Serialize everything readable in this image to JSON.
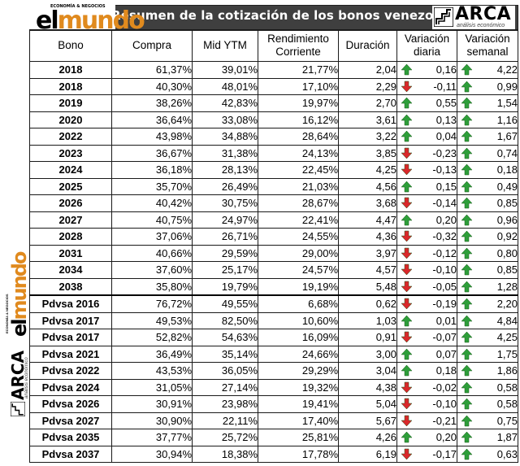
{
  "header": {
    "title": "Resumen de la cotización de los bonos venezolanos",
    "elmundo_tag": "ECONOMÍA & NEGOCIOS",
    "elmundo_el": "el",
    "elmundo_mundo": "mundo",
    "arca_name": "ARCA",
    "arca_sub": "análisis económico"
  },
  "colors": {
    "up": "#2e9e3a",
    "down": "#d9282b",
    "mundo": "#e08a1e",
    "banner": "#3f3f3f"
  },
  "columns": [
    "Bono",
    "Compra",
    "Mid YTM",
    "Rendimiento Corriente",
    "Duración",
    "Variación diaria",
    "Variación semanal"
  ],
  "rows": [
    {
      "bono": "2018",
      "compra": "61,37%",
      "ytm": "39,01%",
      "rend": "21,77%",
      "dur": "2,04",
      "vd": "0,16",
      "vd_dir": "up",
      "vs": "4,22",
      "vs_dir": "up"
    },
    {
      "bono": "2018",
      "compra": "40,30%",
      "ytm": "48,01%",
      "rend": "17,10%",
      "dur": "2,29",
      "vd": "-0,11",
      "vd_dir": "down",
      "vs": "0,99",
      "vs_dir": "up"
    },
    {
      "bono": "2019",
      "compra": "38,26%",
      "ytm": "42,83%",
      "rend": "19,97%",
      "dur": "2,70",
      "vd": "0,55",
      "vd_dir": "up",
      "vs": "1,54",
      "vs_dir": "up"
    },
    {
      "bono": "2020",
      "compra": "36,64%",
      "ytm": "33,08%",
      "rend": "16,12%",
      "dur": "3,61",
      "vd": "0,13",
      "vd_dir": "up",
      "vs": "1,16",
      "vs_dir": "up"
    },
    {
      "bono": "2022",
      "compra": "43,98%",
      "ytm": "34,88%",
      "rend": "28,64%",
      "dur": "3,22",
      "vd": "0,04",
      "vd_dir": "up",
      "vs": "1,67",
      "vs_dir": "up"
    },
    {
      "bono": "2023",
      "compra": "36,67%",
      "ytm": "31,38%",
      "rend": "24,13%",
      "dur": "3,85",
      "vd": "-0,23",
      "vd_dir": "down",
      "vs": "0,74",
      "vs_dir": "up"
    },
    {
      "bono": "2024",
      "compra": "36,18%",
      "ytm": "28,13%",
      "rend": "22,45%",
      "dur": "4,25",
      "vd": "-0,13",
      "vd_dir": "down",
      "vs": "0,18",
      "vs_dir": "up"
    },
    {
      "bono": "2025",
      "compra": "35,70%",
      "ytm": "26,49%",
      "rend": "21,03%",
      "dur": "4,56",
      "vd": "0,15",
      "vd_dir": "up",
      "vs": "0,49",
      "vs_dir": "up"
    },
    {
      "bono": "2026",
      "compra": "40,42%",
      "ytm": "30,75%",
      "rend": "28,67%",
      "dur": "3,68",
      "vd": "-0,14",
      "vd_dir": "down",
      "vs": "0,85",
      "vs_dir": "up"
    },
    {
      "bono": "2027",
      "compra": "40,75%",
      "ytm": "24,97%",
      "rend": "22,41%",
      "dur": "4,47",
      "vd": "0,20",
      "vd_dir": "up",
      "vs": "0,96",
      "vs_dir": "up"
    },
    {
      "bono": "2028",
      "compra": "37,06%",
      "ytm": "26,71%",
      "rend": "24,55%",
      "dur": "4,36",
      "vd": "-0,32",
      "vd_dir": "down",
      "vs": "0,92",
      "vs_dir": "up"
    },
    {
      "bono": "2031",
      "compra": "40,66%",
      "ytm": "29,59%",
      "rend": "29,00%",
      "dur": "3,97",
      "vd": "-0,12",
      "vd_dir": "down",
      "vs": "0,80",
      "vs_dir": "up"
    },
    {
      "bono": "2034",
      "compra": "37,60%",
      "ytm": "25,17%",
      "rend": "24,57%",
      "dur": "4,57",
      "vd": "-0,10",
      "vd_dir": "down",
      "vs": "0,85",
      "vs_dir": "up"
    },
    {
      "bono": "2038",
      "compra": "35,80%",
      "ytm": "19,79%",
      "rend": "19,19%",
      "dur": "5,48",
      "vd": "-0,05",
      "vd_dir": "down",
      "vs": "1,28",
      "vs_dir": "up"
    },
    {
      "bono": "Pdvsa 2016",
      "compra": "76,72%",
      "ytm": "49,55%",
      "rend": "6,68%",
      "dur": "0,62",
      "vd": "-0,19",
      "vd_dir": "down",
      "vs": "2,20",
      "vs_dir": "up"
    },
    {
      "bono": "Pdvsa 2017",
      "compra": "49,53%",
      "ytm": "82,50%",
      "rend": "10,60%",
      "dur": "1,03",
      "vd": "0,01",
      "vd_dir": "up",
      "vs": "4,84",
      "vs_dir": "up"
    },
    {
      "bono": "Pdvsa 2017",
      "compra": "52,82%",
      "ytm": "54,63%",
      "rend": "16,09%",
      "dur": "0,91",
      "vd": "-0,07",
      "vd_dir": "down",
      "vs": "4,25",
      "vs_dir": "up"
    },
    {
      "bono": "Pdvsa 2021",
      "compra": "36,49%",
      "ytm": "35,14%",
      "rend": "24,66%",
      "dur": "3,00",
      "vd": "0,07",
      "vd_dir": "up",
      "vs": "1,75",
      "vs_dir": "up"
    },
    {
      "bono": "Pdvsa 2022",
      "compra": "43,53%",
      "ytm": "36,05%",
      "rend": "29,29%",
      "dur": "3,04",
      "vd": "0,18",
      "vd_dir": "up",
      "vs": "1,86",
      "vs_dir": "up"
    },
    {
      "bono": "Pdvsa 2024",
      "compra": "31,05%",
      "ytm": "27,14%",
      "rend": "19,32%",
      "dur": "4,38",
      "vd": "-0,02",
      "vd_dir": "down",
      "vs": "0,58",
      "vs_dir": "up"
    },
    {
      "bono": "Pdvsa 2026",
      "compra": "30,91%",
      "ytm": "23,98%",
      "rend": "19,41%",
      "dur": "5,04",
      "vd": "-0,10",
      "vd_dir": "down",
      "vs": "0,58",
      "vs_dir": "up"
    },
    {
      "bono": "Pdvsa 2027",
      "compra": "30,90%",
      "ytm": "22,11%",
      "rend": "17,40%",
      "dur": "5,67",
      "vd": "-0,21",
      "vd_dir": "down",
      "vs": "0,75",
      "vs_dir": "up"
    },
    {
      "bono": "Pdvsa 2035",
      "compra": "37,77%",
      "ytm": "25,72%",
      "rend": "25,81%",
      "dur": "4,26",
      "vd": "0,20",
      "vd_dir": "up",
      "vs": "1,87",
      "vs_dir": "up"
    },
    {
      "bono": "Pdvsa 2037",
      "compra": "30,94%",
      "ytm": "18,38%",
      "rend": "17,78%",
      "dur": "6,19",
      "vd": "-0,17",
      "vd_dir": "down",
      "vs": "0,63",
      "vs_dir": "up"
    }
  ]
}
